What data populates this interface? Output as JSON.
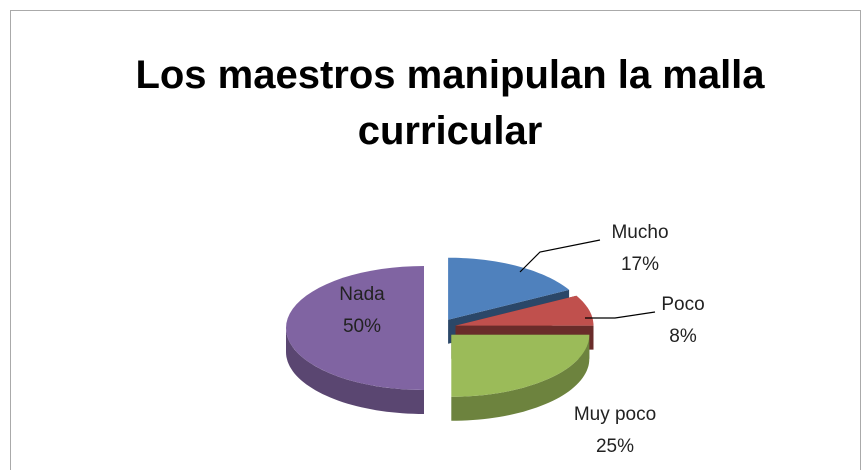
{
  "chart_data": {
    "type": "pie",
    "title": "Los maestros manipulan la malla curricular",
    "categories": [
      "Mucho",
      "Poco",
      "Muy poco",
      "Nada"
    ],
    "values": [
      17,
      8,
      25,
      50
    ],
    "value_labels": [
      "17%",
      "8%",
      "25%",
      "50%"
    ],
    "colors": [
      "#4f81bd",
      "#c0504d",
      "#9bbb59",
      "#8064a2"
    ]
  }
}
